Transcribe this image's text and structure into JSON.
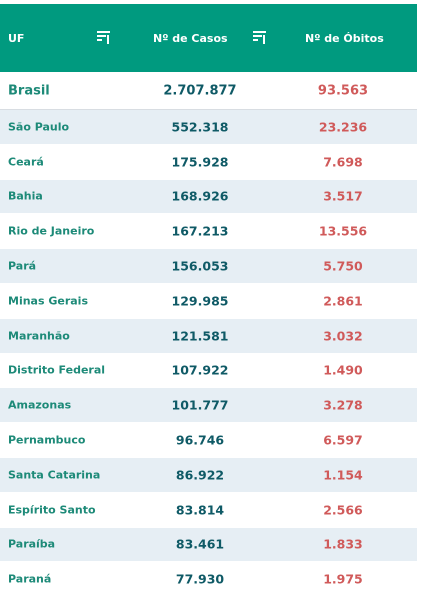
{
  "header": {
    "uf_label": "UF",
    "casos_label": "Nº de Casos",
    "obitos_label": "Nº de Óbitos",
    "background_color": "#009a7f",
    "filter_icon": "filter-icon"
  },
  "total": {
    "name": "Brasil",
    "casos": "2.707.877",
    "obitos": "93.563"
  },
  "rows": [
    {
      "name": "São Paulo",
      "casos": "552.318",
      "obitos": "23.236"
    },
    {
      "name": "Ceará",
      "casos": "175.928",
      "obitos": "7.698"
    },
    {
      "name": "Bahia",
      "casos": "168.926",
      "obitos": "3.517"
    },
    {
      "name": "Rio de Janeiro",
      "casos": "167.213",
      "obitos": "13.556"
    },
    {
      "name": "Pará",
      "casos": "156.053",
      "obitos": "5.750"
    },
    {
      "name": "Minas Gerais",
      "casos": "129.985",
      "obitos": "2.861"
    },
    {
      "name": "Maranhão",
      "casos": "121.581",
      "obitos": "3.032"
    },
    {
      "name": "Distrito Federal",
      "casos": "107.922",
      "obitos": "1.490"
    },
    {
      "name": "Amazonas",
      "casos": "101.777",
      "obitos": "3.278"
    },
    {
      "name": "Pernambuco",
      "casos": "96.746",
      "obitos": "6.597"
    },
    {
      "name": "Santa Catarina",
      "casos": "86.922",
      "obitos": "1.154"
    },
    {
      "name": "Espírito Santo",
      "casos": "83.814",
      "obitos": "2.566"
    },
    {
      "name": "Paraíba",
      "casos": "83.461",
      "obitos": "1.833"
    },
    {
      "name": "Paraná",
      "casos": "77.930",
      "obitos": "1.975"
    }
  ],
  "colors": {
    "state_name": "#1d8a78",
    "casos_value": "#0f5a66",
    "obitos_value": "#d05a5a",
    "alt_row_bg": "#e6eef4"
  }
}
